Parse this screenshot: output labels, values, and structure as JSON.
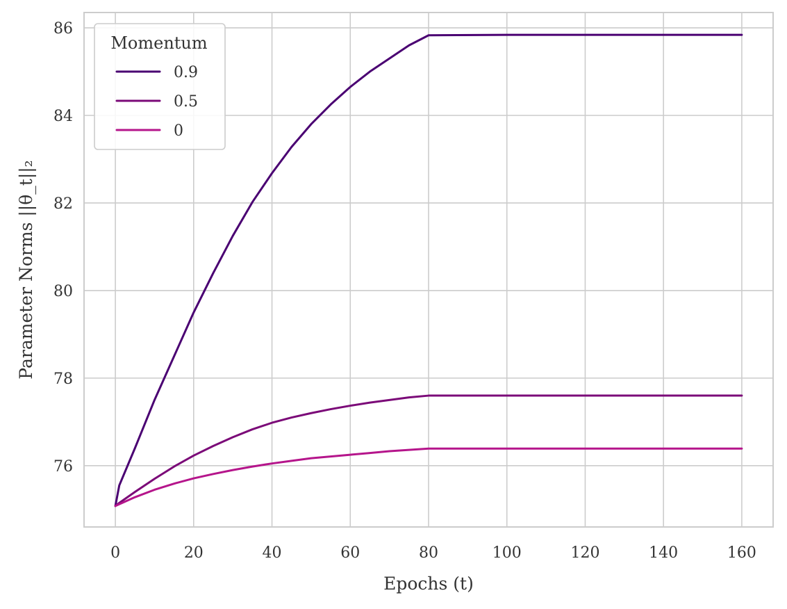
{
  "chart_data": {
    "type": "line",
    "title": "",
    "xlabel": "Epochs (t)",
    "ylabel": "Parameter Norms ||θ_t||₂",
    "xlim": [
      -8,
      168
    ],
    "ylim": [
      74.6,
      86.35
    ],
    "xticks": [
      0,
      20,
      40,
      60,
      80,
      100,
      120,
      140,
      160
    ],
    "yticks": [
      76,
      78,
      80,
      82,
      84,
      86
    ],
    "grid": true,
    "legend": {
      "title": "Momentum",
      "placement": "top-left"
    },
    "x": [
      0,
      1,
      5,
      10,
      15,
      20,
      25,
      30,
      35,
      40,
      45,
      50,
      55,
      60,
      65,
      70,
      75,
      80,
      100,
      120,
      140,
      160
    ],
    "series": [
      {
        "name": "0.9",
        "color": "#4a0072",
        "values": [
          75.08,
          75.55,
          76.4,
          77.5,
          78.5,
          79.5,
          80.4,
          81.25,
          82.02,
          82.68,
          83.28,
          83.8,
          84.25,
          84.65,
          85.0,
          85.3,
          85.6,
          85.83,
          85.84,
          85.84,
          85.84,
          85.84
        ]
      },
      {
        "name": "0.5",
        "color": "#7b0a78",
        "values": [
          75.08,
          75.15,
          75.4,
          75.7,
          75.98,
          76.23,
          76.45,
          76.65,
          76.83,
          76.98,
          77.1,
          77.2,
          77.29,
          77.37,
          77.44,
          77.5,
          77.56,
          77.6,
          77.6,
          77.6,
          77.6,
          77.6
        ]
      },
      {
        "name": "0",
        "color": "#b5158b",
        "values": [
          75.08,
          75.12,
          75.28,
          75.45,
          75.59,
          75.71,
          75.81,
          75.9,
          75.98,
          76.05,
          76.11,
          76.17,
          76.21,
          76.25,
          76.29,
          76.33,
          76.36,
          76.39,
          76.39,
          76.39,
          76.39,
          76.39
        ]
      }
    ]
  }
}
